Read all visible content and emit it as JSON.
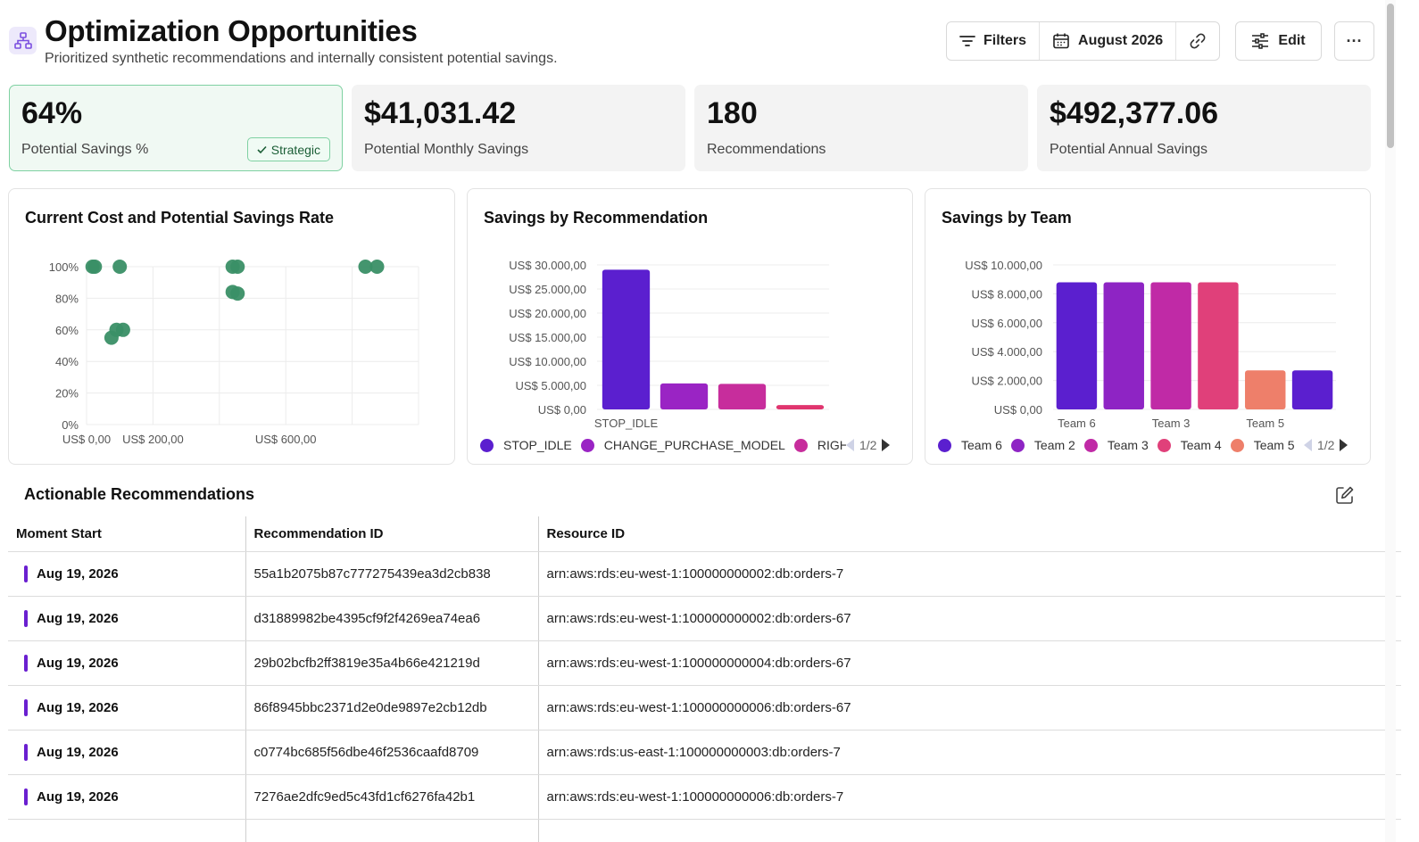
{
  "header": {
    "title": "Optimization Opportunities",
    "subtitle": "Prioritized synthetic recommendations and internally consistent potential savings.",
    "icon": "hierarchy-icon",
    "accent": "#7b4fe0"
  },
  "toolbar": {
    "filters_label": "Filters",
    "date_label": "August 2026",
    "edit_label": "Edit",
    "more_label": "···"
  },
  "kpis": [
    {
      "value": "64%",
      "label": "Potential Savings %",
      "badge": "Strategic"
    },
    {
      "value": "$41,031.42",
      "label": "Potential Monthly Savings"
    },
    {
      "value": "180",
      "label": "Recommendations"
    },
    {
      "value": "$492,377.06",
      "label": "Potential Annual Savings"
    }
  ],
  "charts": {
    "scatter_title": "Current Cost and Potential Savings Rate",
    "bar1_title": "Savings by Recommendation",
    "bar2_title": "Savings by Team",
    "bar1_page": "1/2",
    "bar2_page": "1/2"
  },
  "chart_data": [
    {
      "type": "scatter",
      "title": "Current Cost and Potential Savings Rate",
      "xlabel": "",
      "ylabel": "",
      "xlim": [
        0,
        1000
      ],
      "ylim": [
        0,
        100
      ],
      "x_ticks": [
        "US$ 0,00",
        "US$ 200,00",
        "US$ 600,00"
      ],
      "x_tick_values": [
        0,
        200,
        600
      ],
      "y_ticks": [
        "0%",
        "20%",
        "40%",
        "60%",
        "80%",
        "100%"
      ],
      "y_tick_values": [
        0,
        20,
        40,
        60,
        80,
        100
      ],
      "grid": true,
      "color": "#3a8f66",
      "points": [
        {
          "x": 18,
          "y": 100
        },
        {
          "x": 25,
          "y": 100
        },
        {
          "x": 100,
          "y": 100
        },
        {
          "x": 440,
          "y": 100
        },
        {
          "x": 455,
          "y": 100
        },
        {
          "x": 440,
          "y": 84
        },
        {
          "x": 455,
          "y": 83
        },
        {
          "x": 75,
          "y": 55
        },
        {
          "x": 90,
          "y": 60
        },
        {
          "x": 110,
          "y": 60
        },
        {
          "x": 840,
          "y": 100
        },
        {
          "x": 875,
          "y": 100
        }
      ]
    },
    {
      "type": "bar",
      "title": "Savings by Recommendation",
      "categories": [
        "STOP_IDLE",
        "CHANGE_PURCHASE_MODEL",
        "RIGHTSIZE",
        ""
      ],
      "values": [
        29000,
        5400,
        5300,
        900
      ],
      "colors": [
        "#5b1fcf",
        "#9a24c4",
        "#c72d9c",
        "#e0356f"
      ],
      "x_tick_labels": [
        "STOP_IDLE"
      ],
      "y_ticks": [
        "US$ 0,00",
        "US$ 5.000,00",
        "US$ 10.000,00",
        "US$ 15.000,00",
        "US$ 20.000,00",
        "US$ 25.000,00",
        "US$ 30.000,00"
      ],
      "y_tick_values": [
        0,
        5000,
        10000,
        15000,
        20000,
        25000,
        30000
      ],
      "ylim": [
        0,
        30000
      ],
      "legend": [
        {
          "name": "STOP_IDLE",
          "color": "#5b1fcf"
        },
        {
          "name": "CHANGE_PURCHASE_MODEL",
          "color": "#9a24c4"
        },
        {
          "name": "RIGHTS",
          "color": "#c72d9c"
        }
      ],
      "legend_position": "bottom"
    },
    {
      "type": "bar",
      "title": "Savings by Team",
      "categories": [
        "Team 6",
        "Team 2",
        "Team 3",
        "Team 4",
        "Team 5",
        ""
      ],
      "values": [
        8800,
        8800,
        8800,
        8800,
        2700,
        2700
      ],
      "colors": [
        "#5b1fcf",
        "#8e24c4",
        "#c02aa6",
        "#e0407a",
        "#ee7f6a",
        "#5b1fcf"
      ],
      "x_tick_labels": [
        "Team 6",
        "",
        "Team 3",
        "",
        "Team 5",
        ""
      ],
      "y_ticks": [
        "US$ 0,00",
        "US$ 2.000,00",
        "US$ 4.000,00",
        "US$ 6.000,00",
        "US$ 8.000,00",
        "US$ 10.000,00"
      ],
      "y_tick_values": [
        0,
        2000,
        4000,
        6000,
        8000,
        10000
      ],
      "ylim": [
        0,
        10000
      ],
      "legend": [
        {
          "name": "Team 6",
          "color": "#5b1fcf"
        },
        {
          "name": "Team 2",
          "color": "#8e24c4"
        },
        {
          "name": "Team 3",
          "color": "#c02aa6"
        },
        {
          "name": "Team 4",
          "color": "#e0407a"
        },
        {
          "name": "Team 5",
          "color": "#ee7f6a"
        }
      ],
      "legend_position": "bottom"
    }
  ],
  "table": {
    "title": "Actionable Recommendations",
    "columns": [
      "Moment Start",
      "Recommendation ID",
      "Resource ID"
    ],
    "rows": [
      [
        "Aug 19, 2026",
        "55a1b2075b87c777275439ea3d2cb838",
        "arn:aws:rds:eu-west-1:100000000002:db:orders-7"
      ],
      [
        "Aug 19, 2026",
        "d31889982be4395cf9f2f4269ea74ea6",
        "arn:aws:rds:eu-west-1:100000000002:db:orders-67"
      ],
      [
        "Aug 19, 2026",
        "29b02bcfb2ff3819e35a4b66e421219d",
        "arn:aws:rds:eu-west-1:100000000004:db:orders-67"
      ],
      [
        "Aug 19, 2026",
        "86f8945bbc2371d2e0de9897e2cb12db",
        "arn:aws:rds:eu-west-1:100000000006:db:orders-67"
      ],
      [
        "Aug 19, 2026",
        "c0774bc685f56dbe46f2536caafd8709",
        "arn:aws:rds:us-east-1:100000000003:db:orders-7"
      ],
      [
        "Aug 19, 2026",
        "7276ae2dfc9ed5c43fd1cf6276fa42b1",
        "arn:aws:rds:eu-west-1:100000000006:db:orders-7"
      ]
    ]
  }
}
